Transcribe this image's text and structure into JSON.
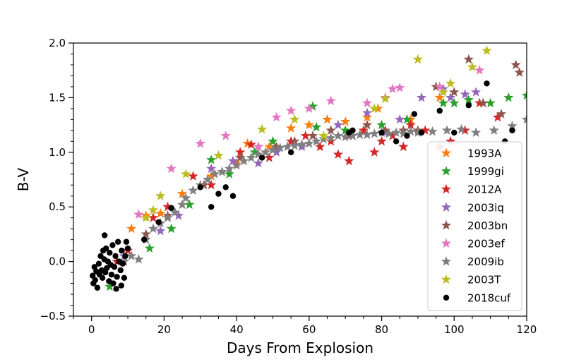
{
  "chart_data": {
    "type": "scatter",
    "xlabel": "Days From Explosion",
    "ylabel": "B-V",
    "xlim": [
      -5,
      120
    ],
    "ylim": [
      -0.5,
      2.0
    ],
    "x_ticks": [
      0,
      20,
      40,
      60,
      80,
      100,
      120
    ],
    "y_ticks": [
      -0.5,
      0.0,
      0.5,
      1.0,
      1.5,
      2.0
    ],
    "x_tick_labels": [
      "0",
      "20",
      "40",
      "60",
      "80",
      "100",
      "120"
    ],
    "y_tick_labels": [
      "−0.5",
      "0.0",
      "0.5",
      "1.0",
      "1.5",
      "2.0"
    ],
    "grid": false,
    "legend_position": "lower-right",
    "series": [
      {
        "name": "1993A",
        "marker": "star",
        "color": "#ff7f0e",
        "x": [
          11,
          15,
          19,
          25,
          33,
          40,
          43,
          49,
          55,
          60,
          65,
          70,
          76,
          79,
          88,
          96
        ],
        "y": [
          0.3,
          0.42,
          0.44,
          0.62,
          0.78,
          0.9,
          1.08,
          1.05,
          1.22,
          1.25,
          1.3,
          1.28,
          1.32,
          1.4,
          1.3,
          1.5
        ]
      },
      {
        "name": "1999gi",
        "marker": "star",
        "color": "#2ca02c",
        "x": [
          5,
          16,
          22,
          27,
          33,
          38,
          45,
          50,
          61,
          62,
          70,
          80,
          87,
          97,
          100,
          104,
          110,
          115,
          120
        ],
        "y": [
          -0.23,
          0.12,
          0.3,
          0.52,
          0.93,
          0.8,
          1.0,
          1.1,
          1.42,
          1.23,
          1.2,
          1.25,
          1.3,
          1.45,
          1.45,
          1.48,
          1.45,
          1.5,
          1.52
        ]
      },
      {
        "name": "2012A",
        "marker": "star",
        "color": "#d62728",
        "x": [
          7,
          10,
          17,
          21,
          28,
          33,
          41,
          44,
          49,
          55,
          59,
          63,
          66,
          68,
          71,
          75,
          78,
          80,
          83,
          86,
          88,
          92,
          96,
          99,
          103,
          107,
          112
        ],
        "y": [
          0.0,
          0.1,
          0.4,
          0.5,
          0.78,
          0.7,
          1.0,
          1.07,
          0.95,
          1.1,
          1.15,
          1.05,
          1.1,
          0.98,
          0.92,
          1.2,
          1.0,
          1.1,
          1.15,
          1.05,
          1.25,
          1.2,
          1.05,
          1.1,
          1.2,
          1.45,
          1.32
        ]
      },
      {
        "name": "2003iq",
        "marker": "star",
        "color": "#9467bd",
        "x": [
          9,
          19,
          24,
          33,
          39,
          46,
          51,
          58,
          68,
          72,
          76,
          81,
          85,
          91,
          97,
          99,
          103,
          106
        ],
        "y": [
          0.05,
          0.28,
          0.42,
          0.85,
          0.92,
          0.9,
          1.0,
          1.05,
          1.25,
          1.15,
          1.36,
          1.18,
          1.3,
          1.5,
          1.58,
          1.5,
          1.53,
          1.55
        ]
      },
      {
        "name": "2003bn",
        "marker": "star",
        "color": "#8c564b",
        "x": [
          15,
          21,
          31,
          36,
          41,
          46,
          51,
          56,
          61,
          66,
          71,
          76,
          81,
          86,
          90,
          95,
          100,
          104,
          108,
          113,
          117,
          118
        ],
        "y": [
          0.25,
          0.42,
          0.7,
          0.82,
          0.95,
          1.05,
          1.05,
          1.1,
          1.15,
          1.2,
          1.15,
          1.25,
          1.2,
          1.2,
          1.2,
          1.6,
          1.55,
          1.85,
          1.45,
          1.35,
          1.8,
          1.73
        ]
      },
      {
        "name": "2003ef",
        "marker": "star",
        "color": "#e377c2",
        "x": [
          13,
          22,
          30,
          37,
          46,
          51,
          55,
          60,
          66,
          76,
          81,
          83,
          85,
          96,
          107
        ],
        "y": [
          0.43,
          0.85,
          1.08,
          1.15,
          1.05,
          1.32,
          1.38,
          1.4,
          1.47,
          1.45,
          1.5,
          1.58,
          1.59,
          1.6,
          1.75
        ]
      },
      {
        "name": "2009ib",
        "marker": "star",
        "color": "#7f7f7f",
        "x": [
          9,
          11,
          13,
          15,
          17,
          19,
          21,
          23,
          25,
          26,
          28,
          30,
          32,
          34,
          36,
          38,
          40,
          42,
          44,
          46,
          48,
          50,
          52,
          54,
          56,
          58,
          60,
          62,
          64,
          66,
          68,
          70,
          72,
          74,
          76,
          78,
          80,
          82,
          84,
          86,
          88,
          90,
          94,
          98,
          102,
          106,
          111,
          116,
          120
        ],
        "y": [
          0.0,
          0.05,
          0.02,
          0.2,
          0.3,
          0.35,
          0.4,
          0.45,
          0.52,
          0.58,
          0.65,
          0.7,
          0.75,
          0.8,
          0.82,
          0.85,
          0.88,
          0.92,
          0.95,
          0.98,
          1.0,
          1.02,
          1.04,
          1.05,
          1.06,
          1.07,
          1.08,
          1.1,
          1.12,
          1.13,
          1.15,
          1.14,
          1.15,
          1.16,
          1.16,
          1.17,
          1.18,
          1.17,
          1.18,
          1.17,
          1.19,
          1.18,
          1.19,
          1.2,
          1.21,
          1.18,
          1.2,
          1.24,
          1.3
        ]
      },
      {
        "name": "2003T",
        "marker": "star",
        "color": "#bcbd22",
        "x": [
          15,
          17,
          19,
          26,
          35,
          47,
          56,
          64,
          78,
          81,
          90,
          97,
          99,
          105,
          109
        ],
        "y": [
          0.4,
          0.47,
          0.6,
          0.8,
          0.97,
          1.21,
          1.3,
          1.15,
          1.4,
          1.49,
          1.85,
          1.55,
          1.63,
          1.78,
          1.93
        ]
      },
      {
        "name": "2018cuf",
        "marker": "circle",
        "color": "#000000",
        "x": [
          0.3,
          0.5,
          0.8,
          1.0,
          1.3,
          1.6,
          2.0,
          2.2,
          2.5,
          2.8,
          3.0,
          3.2,
          3.5,
          3.8,
          4.0,
          4.2,
          4.5,
          4.8,
          5.0,
          5.3,
          5.5,
          5.8,
          6.0,
          6.3,
          6.6,
          7.0,
          7.3,
          7.6,
          8.0,
          8.3,
          8.6,
          9.0,
          9.3,
          9.6,
          10.0,
          3.6,
          6.8,
          8.2,
          14.5,
          18.5,
          22,
          30,
          33,
          35,
          37,
          39,
          47,
          55,
          71,
          72,
          80,
          84,
          87,
          89,
          91,
          96,
          100,
          104,
          109,
          114,
          116
        ],
        "y": [
          -0.13,
          -0.2,
          -0.05,
          -0.17,
          -0.09,
          -0.24,
          -0.02,
          -0.12,
          0.05,
          -0.08,
          -0.15,
          0.1,
          0.02,
          -0.1,
          0.12,
          -0.06,
          0.0,
          -0.18,
          0.08,
          -0.03,
          -0.12,
          0.15,
          -0.2,
          -0.05,
          0.05,
          -0.14,
          0.18,
          0.0,
          -0.08,
          0.1,
          -0.02,
          -0.15,
          0.05,
          0.18,
          0.12,
          0.24,
          -0.25,
          -0.22,
          0.2,
          0.36,
          0.49,
          0.68,
          0.5,
          0.62,
          0.68,
          0.6,
          0.95,
          1.0,
          1.18,
          1.2,
          1.18,
          1.1,
          1.15,
          1.35,
          1.18,
          1.38,
          1.18,
          1.43,
          1.63,
          1.1,
          1.2
        ]
      }
    ]
  }
}
